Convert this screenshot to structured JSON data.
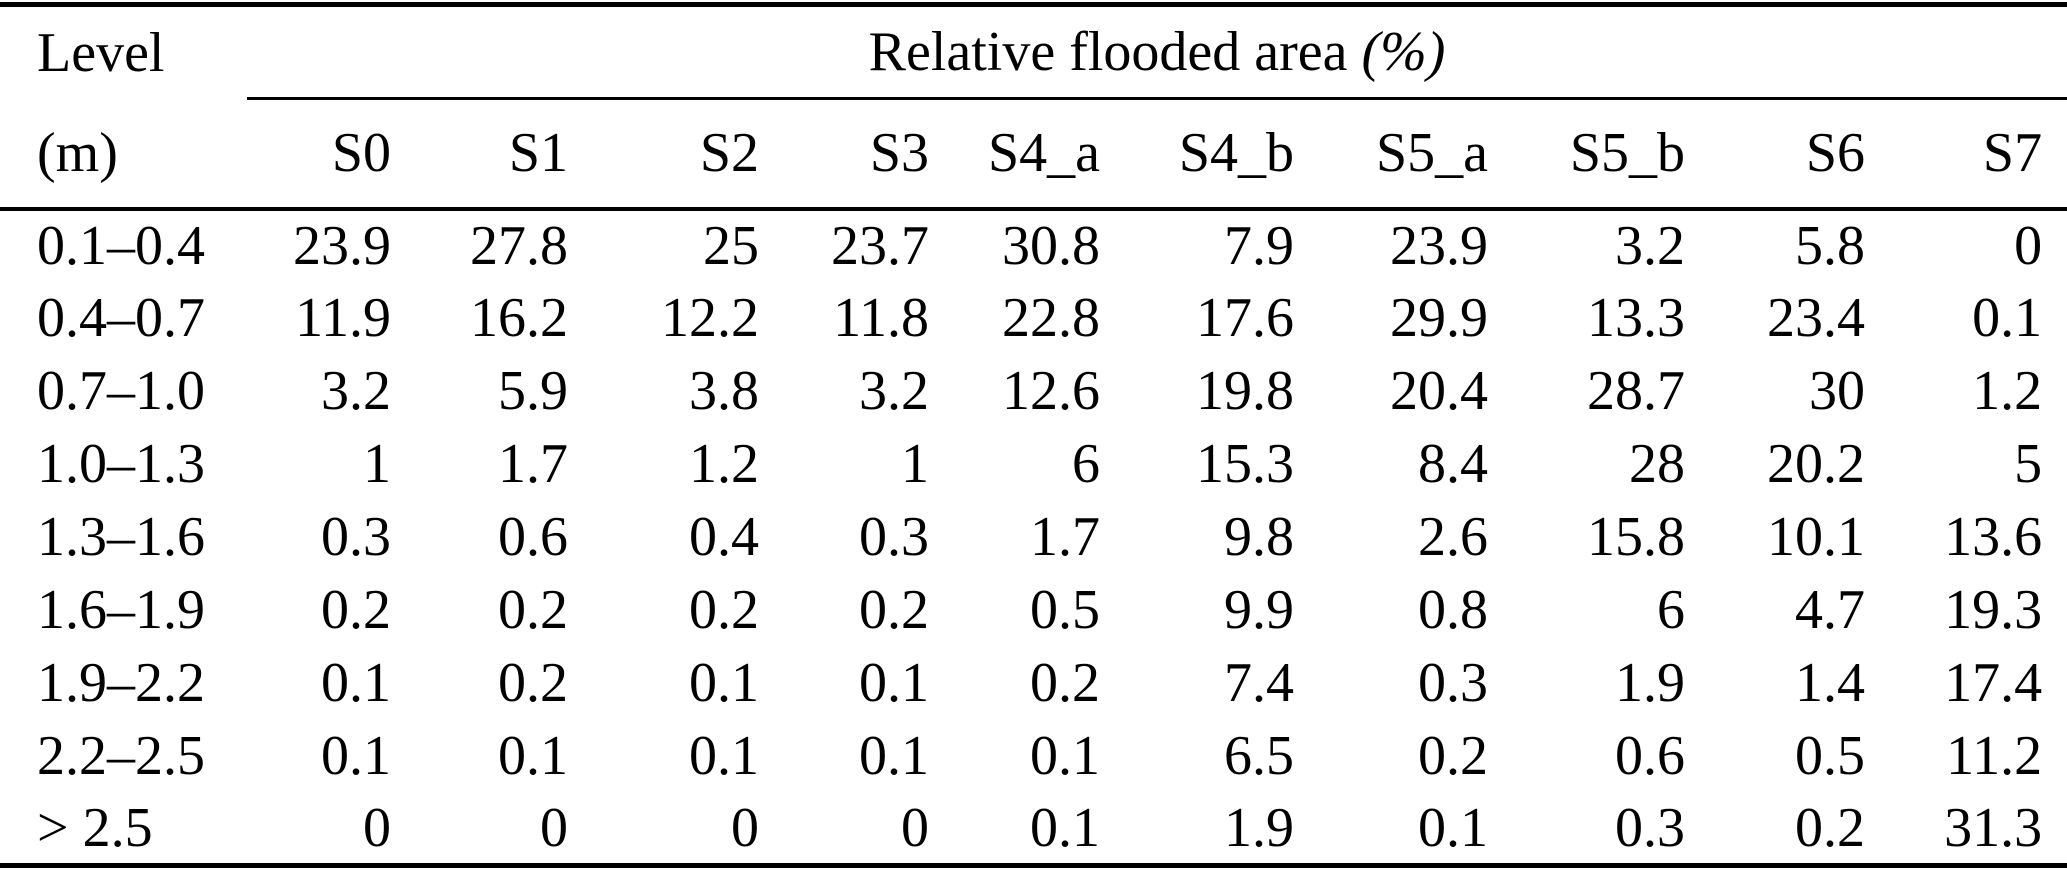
{
  "page": {
    "background": "#ffffff",
    "text_color": "#000000"
  },
  "table": {
    "corner_header": {
      "line1": "Level",
      "line2": "(m)"
    },
    "span_header": {
      "title": "Relative flooded area",
      "unit": "(%)"
    },
    "columns": [
      "S0",
      "S1",
      "S2",
      "S3",
      "S4_a",
      "S4_b",
      "S5_a",
      "S5_b",
      "S6",
      "S7"
    ],
    "rows": [
      {
        "level": "0.1–0.4",
        "values": [
          "23.9",
          "27.8",
          "25",
          "23.7",
          "30.8",
          "7.9",
          "23.9",
          "3.2",
          "5.8",
          "0"
        ]
      },
      {
        "level": "0.4–0.7",
        "values": [
          "11.9",
          "16.2",
          "12.2",
          "11.8",
          "22.8",
          "17.6",
          "29.9",
          "13.3",
          "23.4",
          "0.1"
        ]
      },
      {
        "level": "0.7–1.0",
        "values": [
          "3.2",
          "5.9",
          "3.8",
          "3.2",
          "12.6",
          "19.8",
          "20.4",
          "28.7",
          "30",
          "1.2"
        ]
      },
      {
        "level": "1.0–1.3",
        "values": [
          "1",
          "1.7",
          "1.2",
          "1",
          "6",
          "15.3",
          "8.4",
          "28",
          "20.2",
          "5"
        ]
      },
      {
        "level": "1.3–1.6",
        "values": [
          "0.3",
          "0.6",
          "0.4",
          "0.3",
          "1.7",
          "9.8",
          "2.6",
          "15.8",
          "10.1",
          "13.6"
        ]
      },
      {
        "level": "1.6–1.9",
        "values": [
          "0.2",
          "0.2",
          "0.2",
          "0.2",
          "0.5",
          "9.9",
          "0.8",
          "6",
          "4.7",
          "19.3"
        ]
      },
      {
        "level": "1.9–2.2",
        "values": [
          "0.1",
          "0.2",
          "0.1",
          "0.1",
          "0.2",
          "7.4",
          "0.3",
          "1.9",
          "1.4",
          "17.4"
        ]
      },
      {
        "level": "2.2–2.5",
        "values": [
          "0.1",
          "0.1",
          "0.1",
          "0.1",
          "0.1",
          "6.5",
          "0.2",
          "0.6",
          "0.5",
          "11.2"
        ]
      },
      {
        "level": "> 2.5",
        "values": [
          "0",
          "0",
          "0",
          "0",
          "0.1",
          "1.9",
          "0.1",
          "0.3",
          "0.2",
          "31.3"
        ]
      }
    ]
  }
}
